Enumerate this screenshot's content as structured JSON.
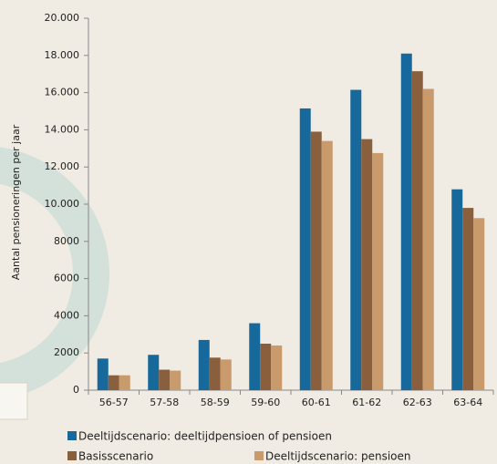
{
  "chart_data": {
    "type": "bar",
    "y_label": "Aantal pensioneringen per jaar",
    "categories": [
      "56-57",
      "57-58",
      "58-59",
      "59-60",
      "60-61",
      "61-62",
      "62-63",
      "63-64"
    ],
    "series": [
      {
        "name": "Deeltijdscenario: deeltijdpensioen of pensioen",
        "color": "#17699b",
        "values": [
          1700,
          1900,
          2700,
          3600,
          15150,
          16150,
          18100,
          10800
        ]
      },
      {
        "name": "Basisscenario",
        "color": "#8a5f3d",
        "values": [
          800,
          1100,
          1750,
          2500,
          13900,
          13500,
          17150,
          9800
        ]
      },
      {
        "name": "Deeltijdscenario: pensioen",
        "color": "#c99a6b",
        "values": [
          800,
          1050,
          1650,
          2400,
          13400,
          12750,
          16200,
          9250
        ]
      }
    ],
    "ylim": [
      0,
      20000
    ],
    "yticks": [
      0,
      2000,
      4000,
      6000,
      8000,
      {
        "value": 10000,
        "label": "10.000"
      },
      {
        "value": 12000,
        "label": "12.000"
      },
      {
        "value": 14000,
        "label": "14.000"
      },
      {
        "value": 16000,
        "label": "16.000"
      },
      {
        "value": 18000,
        "label": "18.000"
      },
      {
        "value": 20000,
        "label": "20.000"
      }
    ]
  }
}
